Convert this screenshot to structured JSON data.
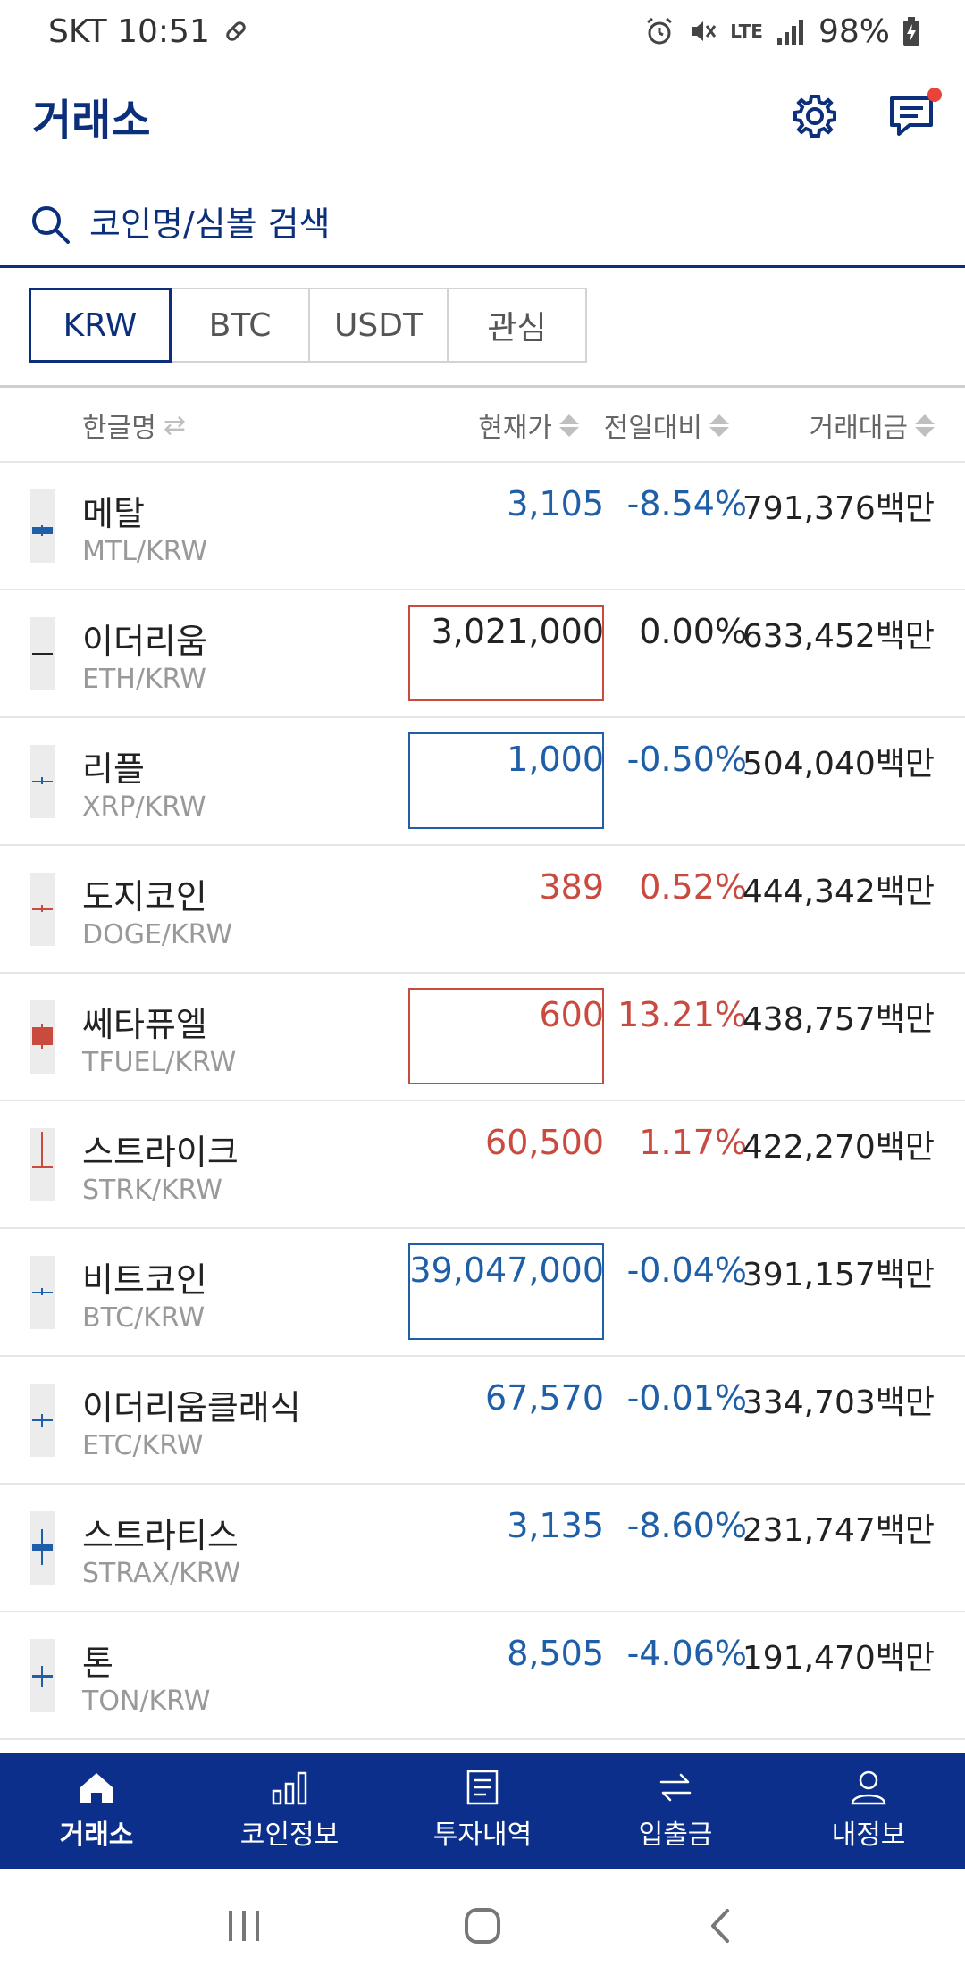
{
  "status_bar": {
    "carrier_time": "SKT 10:51",
    "network": "LTE",
    "battery": "98%"
  },
  "header": {
    "title": "거래소"
  },
  "search": {
    "placeholder": "코인명/심볼 검색"
  },
  "market_tabs": [
    {
      "label": "KRW",
      "active": true
    },
    {
      "label": "BTC",
      "active": false
    },
    {
      "label": "USDT",
      "active": false
    },
    {
      "label": "관심",
      "active": false
    }
  ],
  "columns": {
    "name": "한글명",
    "price": "현재가",
    "change": "전일대비",
    "volume": "거래대금"
  },
  "coins": [
    {
      "name": "메탈",
      "symbol": "MTL/KRW",
      "price": "3,105",
      "change": "-8.54%",
      "volume": "791,376백만",
      "direction": "down",
      "highlight": "none"
    },
    {
      "name": "이더리움",
      "symbol": "ETH/KRW",
      "price": "3,021,000",
      "change": "0.00%",
      "volume": "633,452백만",
      "direction": "flat",
      "highlight": "up"
    },
    {
      "name": "리플",
      "symbol": "XRP/KRW",
      "price": "1,000",
      "change": "-0.50%",
      "volume": "504,040백만",
      "direction": "down",
      "highlight": "down"
    },
    {
      "name": "도지코인",
      "symbol": "DOGE/KRW",
      "price": "389",
      "change": "0.52%",
      "volume": "444,342백만",
      "direction": "up",
      "highlight": "none"
    },
    {
      "name": "쎄타퓨엘",
      "symbol": "TFUEL/KRW",
      "price": "600",
      "change": "13.21%",
      "volume": "438,757백만",
      "direction": "up",
      "highlight": "up"
    },
    {
      "name": "스트라이크",
      "symbol": "STRK/KRW",
      "price": "60,500",
      "change": "1.17%",
      "volume": "422,270백만",
      "direction": "up",
      "highlight": "none"
    },
    {
      "name": "비트코인",
      "symbol": "BTC/KRW",
      "price": "39,047,000",
      "change": "-0.04%",
      "volume": "391,157백만",
      "direction": "down",
      "highlight": "down"
    },
    {
      "name": "이더리움클래식",
      "symbol": "ETC/KRW",
      "price": "67,570",
      "change": "-0.01%",
      "volume": "334,703백만",
      "direction": "down",
      "highlight": "none"
    },
    {
      "name": "스트라티스",
      "symbol": "STRAX/KRW",
      "price": "3,135",
      "change": "-8.60%",
      "volume": "231,747백만",
      "direction": "down",
      "highlight": "none"
    },
    {
      "name": "톤",
      "symbol": "TON/KRW",
      "price": "8,505",
      "change": "-4.06%",
      "volume": "191,470백만",
      "direction": "down",
      "highlight": "none"
    }
  ],
  "bottom_nav": [
    {
      "label": "거래소",
      "icon": "home-icon",
      "active": true
    },
    {
      "label": "코인정보",
      "icon": "bar-chart-icon",
      "active": false
    },
    {
      "label": "투자내역",
      "icon": "document-icon",
      "active": false
    },
    {
      "label": "입출금",
      "icon": "transfer-icon",
      "active": false
    },
    {
      "label": "내정보",
      "icon": "user-icon",
      "active": false
    }
  ],
  "colors": {
    "brand_navy": "#0b2f7a",
    "nav_bg": "#0b2f8a",
    "up_red": "#c94a3f",
    "down_blue": "#1f5fa8"
  }
}
